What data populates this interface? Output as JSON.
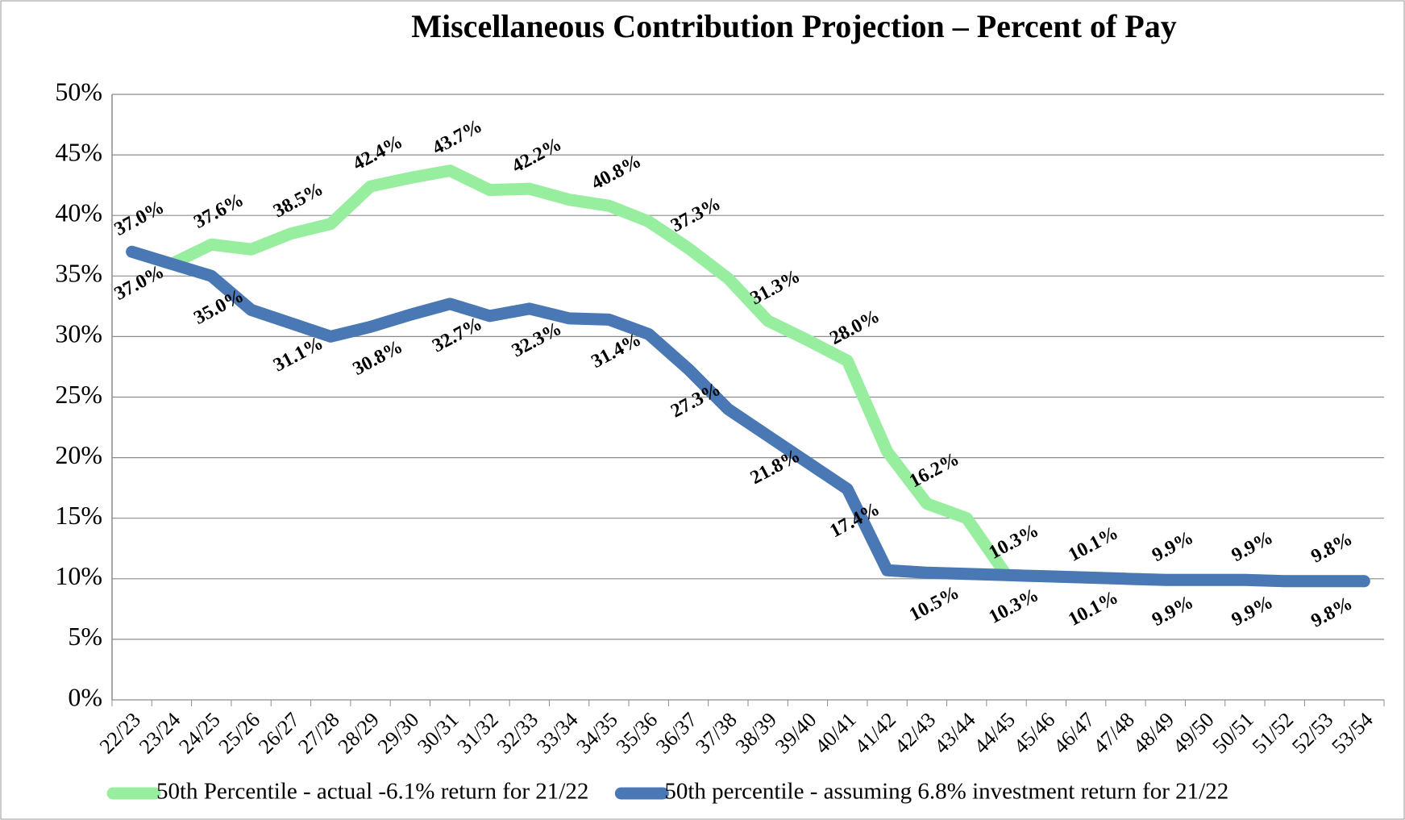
{
  "chart_data": {
    "type": "line",
    "title": "Miscellaneous Contribution Projection – Percent of Pay",
    "categories": [
      "22/23",
      "23/24",
      "24/25",
      "25/26",
      "26/27",
      "27/28",
      "28/29",
      "29/30",
      "30/31",
      "31/32",
      "32/33",
      "33/34",
      "34/35",
      "35/36",
      "36/37",
      "37/38",
      "38/39",
      "39/40",
      "40/41",
      "41/42",
      "42/43",
      "43/44",
      "44/45",
      "45/46",
      "46/47",
      "47/48",
      "48/49",
      "49/50",
      "50/51",
      "51/52",
      "52/53",
      "53/54"
    ],
    "series": [
      {
        "name": "50th Percentile - actual -6.1% return for 21/22",
        "color": "#98ee9f",
        "values": [
          37.0,
          36.0,
          37.6,
          37.2,
          38.5,
          39.3,
          42.4,
          43.1,
          43.7,
          42.1,
          42.2,
          41.3,
          40.8,
          39.5,
          37.3,
          34.8,
          31.3,
          29.7,
          28.0,
          20.5,
          16.2,
          15.0,
          10.3,
          10.2,
          10.1,
          10.0,
          9.9,
          9.9,
          9.9,
          9.8,
          9.8,
          9.8
        ],
        "value_labels": [
          "37.0%",
          null,
          "37.6%",
          null,
          "38.5%",
          null,
          "42.4%",
          null,
          "43.7%",
          null,
          "42.2%",
          null,
          "40.8%",
          null,
          "37.3%",
          null,
          "31.3%",
          null,
          "28.0%",
          null,
          "16.2%",
          null,
          "10.3%",
          null,
          "10.1%",
          null,
          "9.9%",
          null,
          "9.9%",
          null,
          "9.8%",
          null
        ]
      },
      {
        "name": "50th percentile - assuming 6.8% investment return for 21/22",
        "color": "#4a78b4",
        "values": [
          37.0,
          36.0,
          35.0,
          32.2,
          31.1,
          30.0,
          30.8,
          31.8,
          32.7,
          31.7,
          32.3,
          31.5,
          31.4,
          30.2,
          27.3,
          24.0,
          21.8,
          19.6,
          17.4,
          10.7,
          10.5,
          10.4,
          10.3,
          10.2,
          10.1,
          10.0,
          9.9,
          9.9,
          9.9,
          9.8,
          9.8,
          9.8
        ],
        "value_labels": [
          "37.0%",
          null,
          "35.0%",
          null,
          "31.1%",
          null,
          "30.8%",
          null,
          "32.7%",
          null,
          "32.3%",
          null,
          "31.4%",
          null,
          "27.3%",
          null,
          "21.8%",
          null,
          "17.4%",
          null,
          "10.5%",
          null,
          "10.3%",
          null,
          "10.1%",
          null,
          "9.9%",
          null,
          "9.9%",
          null,
          "9.8%",
          null
        ]
      }
    ],
    "ylim": [
      0,
      50
    ],
    "yticks": [
      {
        "value": 0,
        "label": "0%"
      },
      {
        "value": 5,
        "label": "5%"
      },
      {
        "value": 10,
        "label": "10%"
      },
      {
        "value": 15,
        "label": "15%"
      },
      {
        "value": 20,
        "label": "20%"
      },
      {
        "value": 25,
        "label": "25%"
      },
      {
        "value": 30,
        "label": "30%"
      },
      {
        "value": 35,
        "label": "35%"
      },
      {
        "value": 40,
        "label": "40%"
      },
      {
        "value": 45,
        "label": "45%"
      },
      {
        "value": 50,
        "label": "50%"
      }
    ],
    "grid": true,
    "legend": "bottom"
  }
}
